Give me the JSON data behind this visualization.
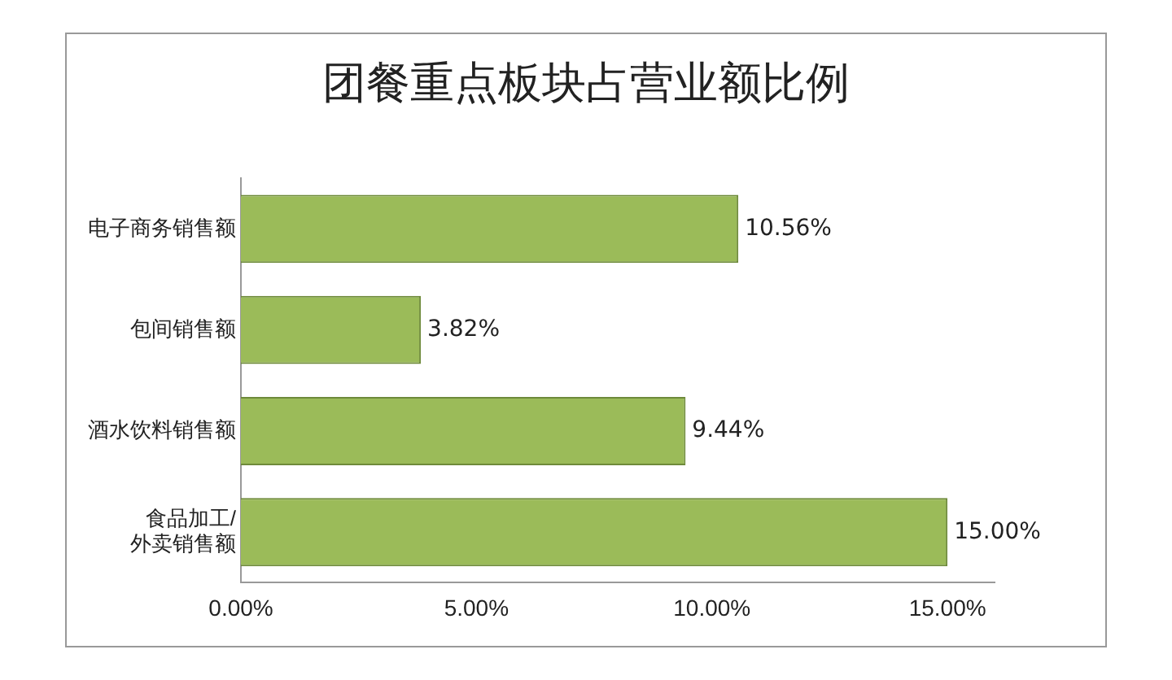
{
  "chart_data": {
    "type": "bar",
    "orientation": "horizontal",
    "title": "团餐重点板块占营业额比例",
    "categories": [
      "电子商务销售额",
      "包间销售额",
      "酒水饮料销售额",
      "食品加工/\n外卖销售额"
    ],
    "values": [
      10.56,
      3.82,
      9.44,
      15.0
    ],
    "value_labels": [
      "10.56%",
      "3.82%",
      "9.44%",
      "15.00%"
    ],
    "color": "#9bbb59",
    "xlim": [
      0,
      16
    ],
    "xticks": [
      {
        "value": 0,
        "label": "0.00%"
      },
      {
        "value": 5,
        "label": "5.00%"
      },
      {
        "value": 10,
        "label": "10.00%"
      },
      {
        "value": 15,
        "label": "15.00%"
      }
    ],
    "grid": false,
    "legend": false
  }
}
